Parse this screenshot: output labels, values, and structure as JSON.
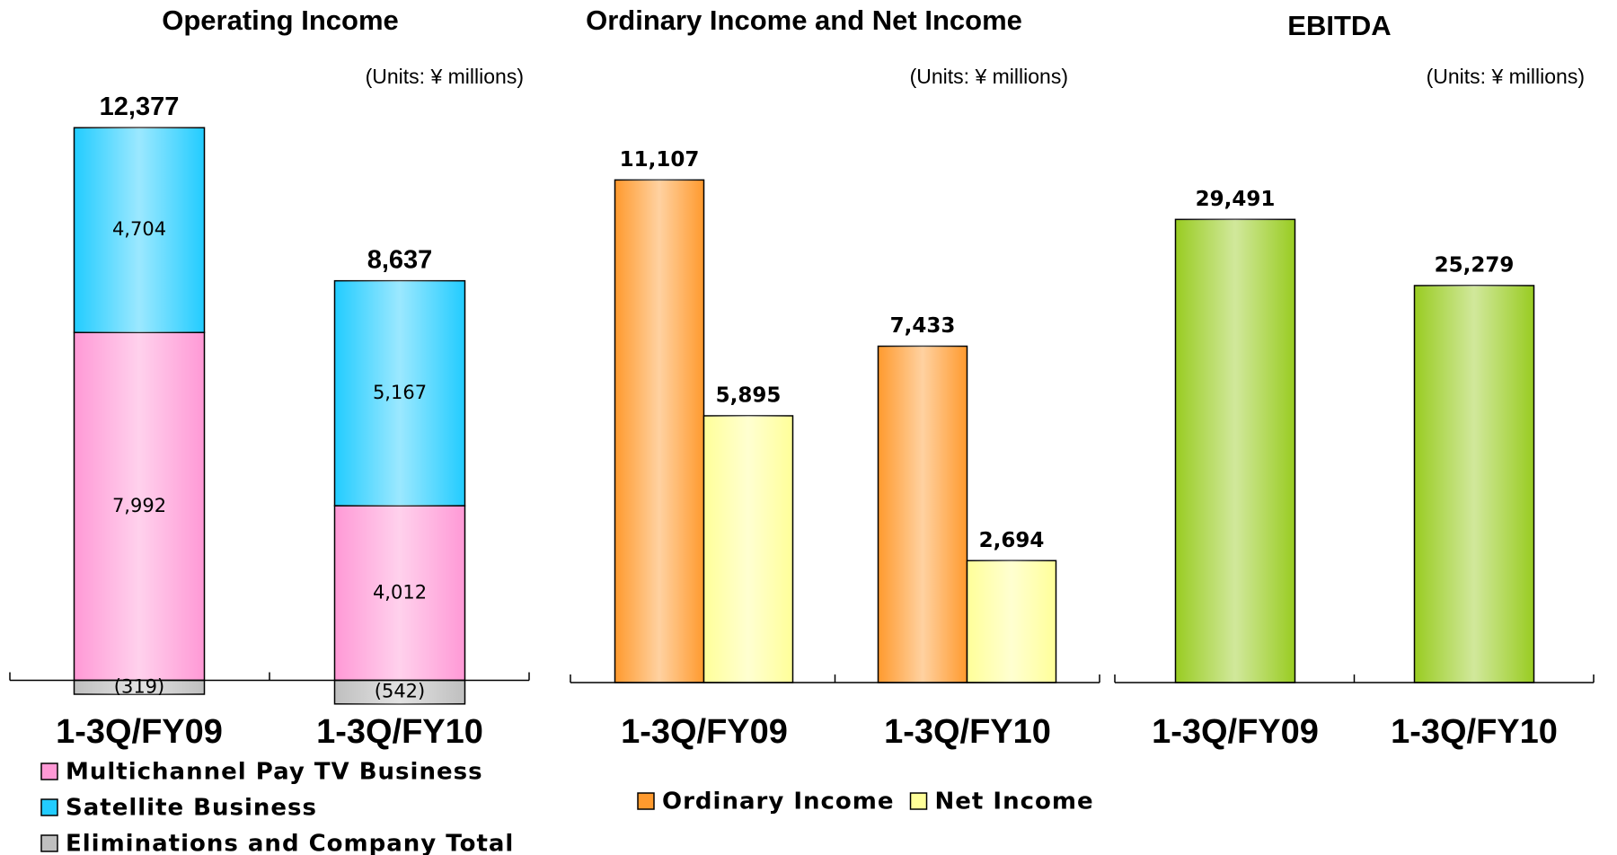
{
  "chart_data": [
    {
      "type": "stacked_bar",
      "title": "Operating Income",
      "subtitle": "(Units: ¥ millions)",
      "categories": [
        "1-3Q/FY09",
        "1-3Q/FY10"
      ],
      "series": [
        {
          "name": "Multichannel Pay TV Business",
          "color": "#ff99d6",
          "values": [
            7992,
            4012
          ],
          "value_labels": [
            "7,992",
            "4,012"
          ]
        },
        {
          "name": "Satellite Business",
          "color": "#22ccff",
          "values": [
            4704,
            5167
          ],
          "value_labels": [
            "4,704",
            "5,167"
          ]
        },
        {
          "name": "Eliminations and Company Total",
          "color": "#bfbfbf",
          "values": [
            -319,
            -542
          ],
          "value_labels": [
            "(319)",
            "(542)"
          ]
        }
      ],
      "totals": [
        12377,
        8637
      ],
      "totals_labels": [
        "12,377",
        "8,637"
      ],
      "ylim": [
        -1000,
        14000
      ],
      "legend": "bottom-left"
    },
    {
      "type": "bar",
      "title": "Ordinary Income and Net Income",
      "subtitle": "(Units: ¥ millions)",
      "categories": [
        "1-3Q/FY09",
        "1-3Q/FY10"
      ],
      "series": [
        {
          "name": "Ordinary Income",
          "color": "#ff9a2e",
          "values": [
            11107,
            7433
          ],
          "value_labels": [
            "11,107",
            "7,433"
          ]
        },
        {
          "name": "Net Income",
          "color": "#ffff99",
          "values": [
            5895,
            2694
          ],
          "value_labels": [
            "5,895",
            "2,694"
          ]
        }
      ],
      "ylim": [
        0,
        13000
      ],
      "legend": "bottom"
    },
    {
      "type": "bar",
      "title": "EBITDA",
      "subtitle": "(Units: ¥ millions)",
      "categories": [
        "1-3Q/FY09",
        "1-3Q/FY10"
      ],
      "color": "#99cc22",
      "values": [
        29491,
        25279
      ],
      "value_labels": [
        "29,491",
        "25,279"
      ],
      "ylim": [
        0,
        35000
      ]
    }
  ]
}
